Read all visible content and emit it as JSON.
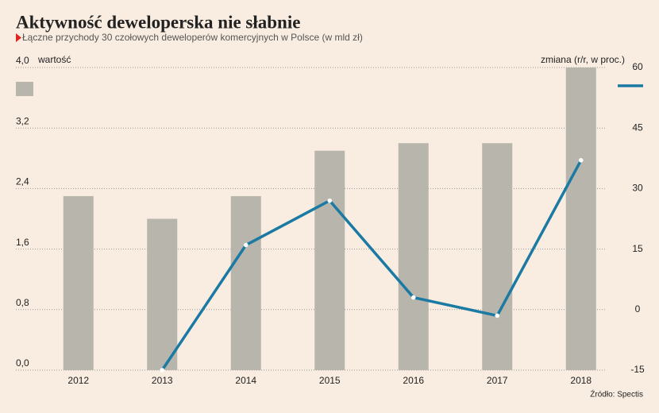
{
  "chart_data": {
    "type": "bar_line",
    "title": "Aktywność deweloperska nie słabnie",
    "subtitle": "Łączne przychody 30 czołowych deweloperów komercyjnych w Polsce (w mld zł)",
    "y_label": "wartość",
    "y2_label": "zmiana (r/r, w proc.)",
    "source": "Źródło: Spectis",
    "categories": [
      "2012",
      "2013",
      "2014",
      "2015",
      "2016",
      "2017",
      "2018"
    ],
    "series": [
      {
        "type": "bar",
        "color": "#b7b5ac",
        "values": [
          2.3,
          2.0,
          2.3,
          2.9,
          3.0,
          3.0,
          4.0
        ]
      },
      {
        "type": "line",
        "axis": "y2",
        "color": "#1a7aa3",
        "values": [
          null,
          -15,
          16,
          27,
          3,
          -1.5,
          37
        ]
      }
    ],
    "ylim": [
      0,
      4.0
    ],
    "yticks": [
      {
        "value": 0,
        "label": "0,0"
      },
      {
        "value": 0.8,
        "label": "0,8"
      },
      {
        "value": 1.6,
        "label": "1,6"
      },
      {
        "value": 2.4,
        "label": "2,4"
      },
      {
        "value": 3.2,
        "label": "3,2"
      },
      {
        "value": 4.0,
        "label": "4,0"
      }
    ],
    "y2lim": [
      -15,
      60
    ],
    "y2ticks": [
      -15,
      0,
      15,
      30,
      45,
      60
    ],
    "grid": true
  }
}
